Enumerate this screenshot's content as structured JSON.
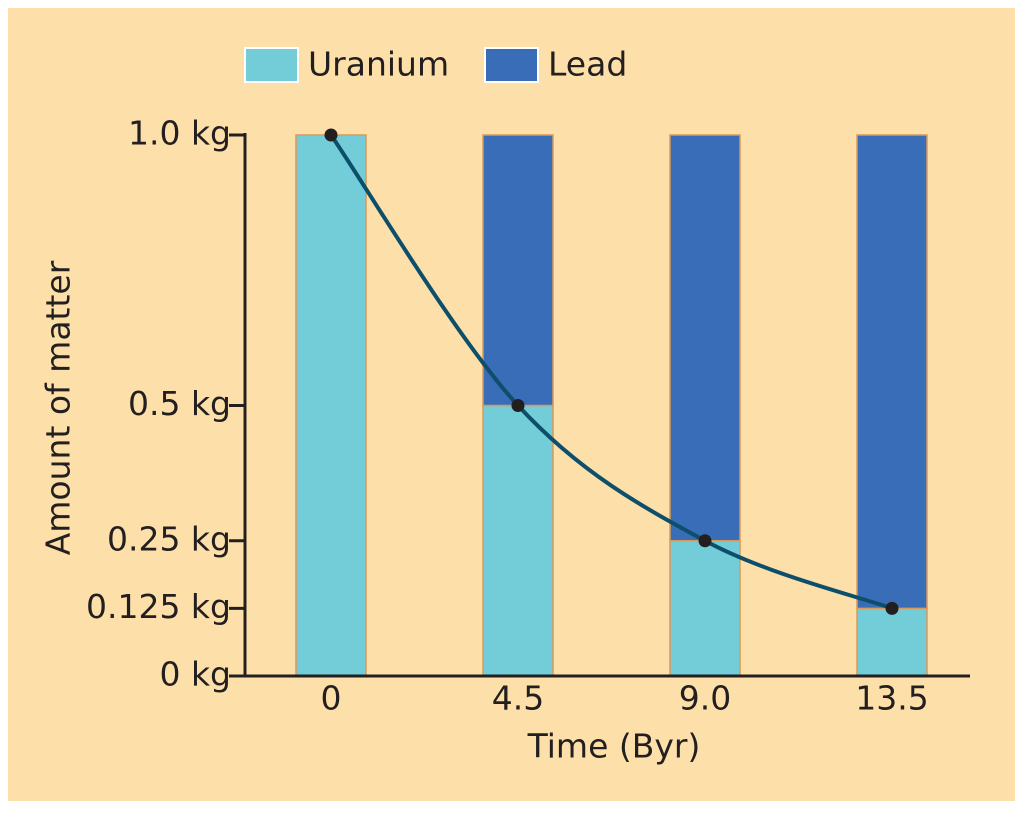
{
  "chart_data": {
    "type": "bar",
    "stacked": true,
    "categories": [
      "0",
      "4.5",
      "9.0",
      "13.5"
    ],
    "series": [
      {
        "name": "Uranium",
        "color": "#72cdd9",
        "values": [
          1.0,
          0.5,
          0.25,
          0.125
        ]
      },
      {
        "name": "Lead",
        "color": "#3a6db8",
        "values": [
          0,
          0.5,
          0.75,
          0.875
        ]
      }
    ],
    "curve_color": "#0d4f6b",
    "ylim": [
      0,
      1
    ],
    "yticks": [
      {
        "value": 0,
        "label": "0 kg"
      },
      {
        "value": 0.125,
        "label": "0.125 kg"
      },
      {
        "value": 0.25,
        "label": "0.25 kg"
      },
      {
        "value": 0.5,
        "label": "0.5 kg"
      },
      {
        "value": 1,
        "label": "1.0 kg"
      }
    ],
    "xlabel": "Time (Byr)",
    "ylabel": "Amount of matter"
  }
}
